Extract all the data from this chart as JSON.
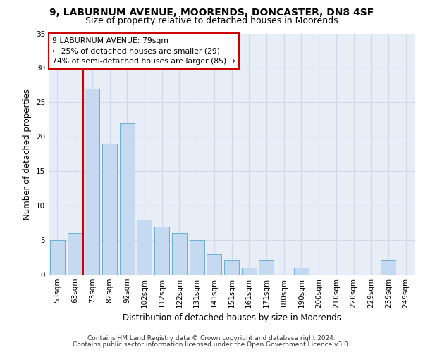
{
  "title1": "9, LABURNUM AVENUE, MOORENDS, DONCASTER, DN8 4SF",
  "title2": "Size of property relative to detached houses in Moorends",
  "xlabel": "Distribution of detached houses by size in Moorends",
  "ylabel": "Number of detached properties",
  "footnote1": "Contains HM Land Registry data © Crown copyright and database right 2024.",
  "footnote2": "Contains public sector information licensed under the Open Government Licence v3.0.",
  "bar_labels": [
    "53sqm",
    "63sqm",
    "73sqm",
    "82sqm",
    "92sqm",
    "102sqm",
    "112sqm",
    "122sqm",
    "131sqm",
    "141sqm",
    "151sqm",
    "161sqm",
    "171sqm",
    "180sqm",
    "190sqm",
    "200sqm",
    "210sqm",
    "220sqm",
    "229sqm",
    "239sqm",
    "249sqm"
  ],
  "bar_values": [
    5,
    6,
    27,
    19,
    22,
    8,
    7,
    6,
    5,
    3,
    2,
    1,
    2,
    0,
    1,
    0,
    0,
    0,
    0,
    2,
    0
  ],
  "bar_color": "#c5d9f0",
  "bar_edge_color": "#6baed6",
  "highlight_line_color": "#cc0000",
  "annotation_box_text": "9 LABURNUM AVENUE: 79sqm\n← 25% of detached houses are smaller (29)\n74% of semi-detached houses are larger (85) →",
  "annotation_box_color": "#cc0000",
  "ylim": [
    0,
    35
  ],
  "yticks": [
    0,
    5,
    10,
    15,
    20,
    25,
    30,
    35
  ],
  "grid_color": "#d0d8e8",
  "bg_color": "#e8eef8",
  "title1_fontsize": 10,
  "title2_fontsize": 9,
  "axis_fontsize": 8.5,
  "tick_fontsize": 7.5,
  "footnote_fontsize": 6.5
}
